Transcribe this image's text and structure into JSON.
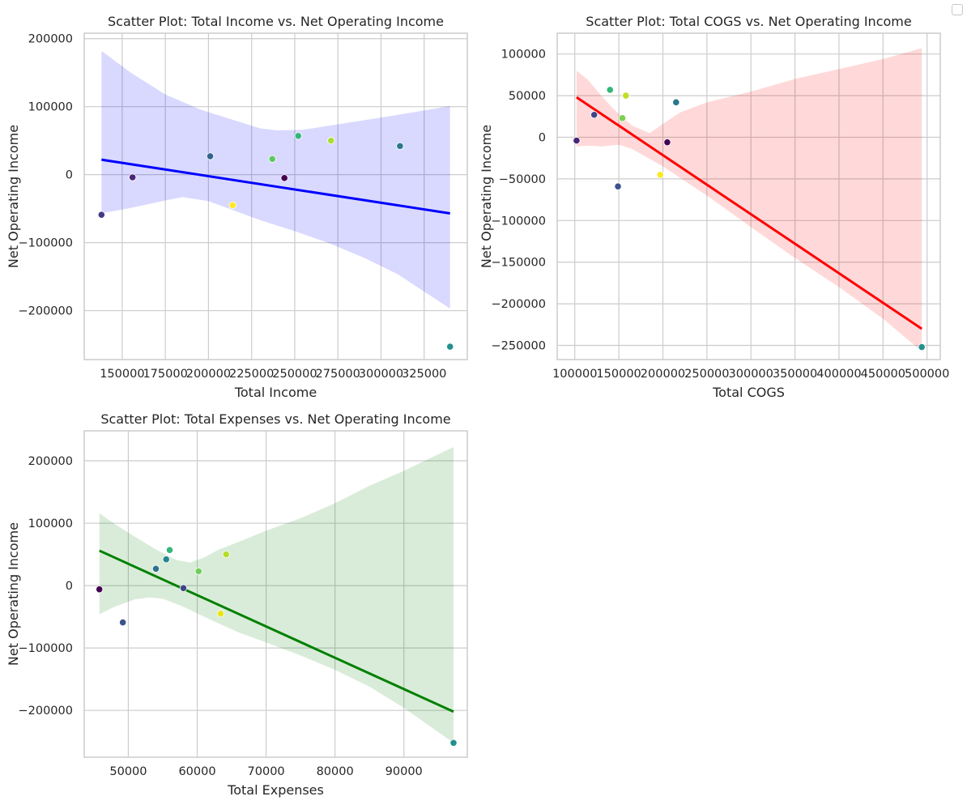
{
  "chart_data": [
    {
      "type": "scatter",
      "title": "Scatter Plot: Total Income vs. Net Operating Income",
      "xlabel": "Total Income",
      "ylabel": "Net Operating Income",
      "xlim": [
        128000,
        350000
      ],
      "ylim": [
        -272000,
        208000
      ],
      "xticks": [
        150000,
        175000,
        200000,
        225000,
        250000,
        275000,
        300000,
        325000
      ],
      "xtick_labels": [
        "150000",
        "175000",
        "200000",
        "225000",
        "250000",
        "275000",
        "300000",
        "325000"
      ],
      "yticks": [
        -200000,
        -100000,
        0,
        100000,
        200000
      ],
      "ytick_labels": [
        "−200000",
        "−100000",
        "0",
        "100000",
        "200000"
      ],
      "grid": true,
      "points": [
        {
          "x": 138000,
          "y": -59000,
          "color": "#443983"
        },
        {
          "x": 156000,
          "y": -4000,
          "color": "#482677"
        },
        {
          "x": 201000,
          "y": 27000,
          "color": "#33638d"
        },
        {
          "x": 214000,
          "y": -45000,
          "color": "#fde725"
        },
        {
          "x": 237000,
          "y": 23000,
          "color": "#5ec962"
        },
        {
          "x": 244000,
          "y": -5000,
          "color": "#440154"
        },
        {
          "x": 252000,
          "y": 57000,
          "color": "#35b779"
        },
        {
          "x": 271000,
          "y": 50000,
          "color": "#aadc32"
        },
        {
          "x": 311000,
          "y": 42000,
          "color": "#2a788e"
        },
        {
          "x": 340000,
          "y": -253000,
          "color": "#21918c"
        }
      ],
      "regression": {
        "color": "#0000ff",
        "line": [
          [
            138000,
            22000
          ],
          [
            340000,
            -57000
          ]
        ],
        "band_upper": [
          [
            138000,
            182000
          ],
          [
            155000,
            150000
          ],
          [
            175000,
            118000
          ],
          [
            195000,
            96000
          ],
          [
            215000,
            80000
          ],
          [
            230000,
            68000
          ],
          [
            240000,
            65000
          ],
          [
            255000,
            66000
          ],
          [
            270000,
            72000
          ],
          [
            290000,
            80000
          ],
          [
            310000,
            88000
          ],
          [
            340000,
            101000
          ]
        ],
        "band_lower": [
          [
            138000,
            -57000
          ],
          [
            155000,
            -49000
          ],
          [
            175000,
            -38000
          ],
          [
            185000,
            -33000
          ],
          [
            200000,
            -39000
          ],
          [
            215000,
            -53000
          ],
          [
            230000,
            -67000
          ],
          [
            250000,
            -83000
          ],
          [
            270000,
            -101000
          ],
          [
            290000,
            -122000
          ],
          [
            310000,
            -147000
          ],
          [
            340000,
            -197000
          ]
        ]
      }
    },
    {
      "type": "scatter",
      "title": "Scatter Plot: Total COGS vs. Net Operating Income",
      "xlabel": "Total COGS",
      "ylabel": "Net Operating Income",
      "xlim": [
        80000,
        515000
      ],
      "ylim": [
        -267000,
        125000
      ],
      "xticks": [
        100000,
        150000,
        200000,
        250000,
        300000,
        350000,
        400000,
        450000,
        500000
      ],
      "xtick_labels": [
        "100000",
        "150000",
        "200000",
        "250000",
        "300000",
        "350000",
        "400000",
        "450000",
        "500000"
      ],
      "yticks": [
        -250000,
        -200000,
        -150000,
        -100000,
        -50000,
        0,
        50000,
        100000
      ],
      "ytick_labels": [
        "−250000",
        "−200000",
        "−150000",
        "−100000",
        "−50000",
        "0",
        "50000",
        "100000"
      ],
      "grid": true,
      "points": [
        {
          "x": 102000,
          "y": -4000,
          "color": "#482677"
        },
        {
          "x": 122000,
          "y": 27000,
          "color": "#414487"
        },
        {
          "x": 140000,
          "y": 57000,
          "color": "#35b779"
        },
        {
          "x": 149000,
          "y": -59000,
          "color": "#3b528b"
        },
        {
          "x": 154000,
          "y": 23000,
          "color": "#7ad151"
        },
        {
          "x": 158000,
          "y": 50000,
          "color": "#bddf26"
        },
        {
          "x": 197000,
          "y": -45000,
          "color": "#fde725"
        },
        {
          "x": 205000,
          "y": -6000,
          "color": "#440154"
        },
        {
          "x": 215000,
          "y": 42000,
          "color": "#2a788e"
        },
        {
          "x": 494000,
          "y": -252000,
          "color": "#21918c"
        }
      ],
      "regression": {
        "color": "#ff0000",
        "line": [
          [
            102000,
            48000
          ],
          [
            494000,
            -230000
          ]
        ],
        "band_upper": [
          [
            102000,
            80000
          ],
          [
            115000,
            69000
          ],
          [
            130000,
            50000
          ],
          [
            145000,
            33000
          ],
          [
            165000,
            14000
          ],
          [
            185000,
            5000
          ],
          [
            200000,
            16000
          ],
          [
            220000,
            30000
          ],
          [
            250000,
            42000
          ],
          [
            300000,
            55000
          ],
          [
            350000,
            70000
          ],
          [
            400000,
            82000
          ],
          [
            450000,
            94000
          ],
          [
            494000,
            107000
          ]
        ],
        "band_lower": [
          [
            102000,
            -11000
          ],
          [
            115000,
            -10000
          ],
          [
            130000,
            -11000
          ],
          [
            150000,
            -9000
          ],
          [
            165000,
            -14000
          ],
          [
            200000,
            -35000
          ],
          [
            250000,
            -70000
          ],
          [
            300000,
            -108000
          ],
          [
            350000,
            -145000
          ],
          [
            400000,
            -180000
          ],
          [
            450000,
            -218000
          ],
          [
            494000,
            -257000
          ]
        ]
      }
    },
    {
      "type": "scatter",
      "title": "Scatter Plot: Total Expenses vs. Net Operating Income",
      "xlabel": "Total Expenses",
      "ylabel": "Net Operating Income",
      "xlim": [
        43600,
        99200
      ],
      "ylim": [
        -275000,
        248000
      ],
      "xticks": [
        50000,
        60000,
        70000,
        80000,
        90000
      ],
      "xtick_labels": [
        "50000",
        "60000",
        "70000",
        "80000",
        "90000"
      ],
      "yticks": [
        -200000,
        -100000,
        0,
        100000,
        200000
      ],
      "ytick_labels": [
        "−200000",
        "−100000",
        "0",
        "100000",
        "200000"
      ],
      "grid": true,
      "points": [
        {
          "x": 45800,
          "y": -6000,
          "color": "#440154"
        },
        {
          "x": 49200,
          "y": -59000,
          "color": "#3b528b"
        },
        {
          "x": 54000,
          "y": 27000,
          "color": "#2c728e"
        },
        {
          "x": 55500,
          "y": 42000,
          "color": "#23888e"
        },
        {
          "x": 56000,
          "y": 57000,
          "color": "#35b779"
        },
        {
          "x": 58000,
          "y": -4000,
          "color": "#414487"
        },
        {
          "x": 60200,
          "y": 23000,
          "color": "#6ece58"
        },
        {
          "x": 63400,
          "y": -45000,
          "color": "#e8e419"
        },
        {
          "x": 64200,
          "y": 50000,
          "color": "#b5de2b"
        },
        {
          "x": 97200,
          "y": -252000,
          "color": "#21918c"
        }
      ],
      "regression": {
        "color": "#008000",
        "line": [
          [
            45800,
            56000
          ],
          [
            97200,
            -202000
          ]
        ],
        "band_upper": [
          [
            45800,
            116000
          ],
          [
            48000,
            99000
          ],
          [
            51000,
            78000
          ],
          [
            54000,
            58000
          ],
          [
            57000,
            41000
          ],
          [
            59000,
            37000
          ],
          [
            61000,
            45000
          ],
          [
            63000,
            57000
          ],
          [
            66000,
            70000
          ],
          [
            70000,
            88000
          ],
          [
            75000,
            108000
          ],
          [
            80000,
            132000
          ],
          [
            85000,
            160000
          ],
          [
            90000,
            184000
          ],
          [
            97200,
            222000
          ]
        ],
        "band_lower": [
          [
            45800,
            -46000
          ],
          [
            48000,
            -34000
          ],
          [
            51000,
            -22000
          ],
          [
            53000,
            -19000
          ],
          [
            55000,
            -21000
          ],
          [
            58000,
            -34000
          ],
          [
            62000,
            -55000
          ],
          [
            66000,
            -75000
          ],
          [
            70000,
            -91000
          ],
          [
            75000,
            -112000
          ],
          [
            80000,
            -135000
          ],
          [
            85000,
            -162000
          ],
          [
            90000,
            -196000
          ],
          [
            97200,
            -252000
          ]
        ]
      }
    }
  ]
}
